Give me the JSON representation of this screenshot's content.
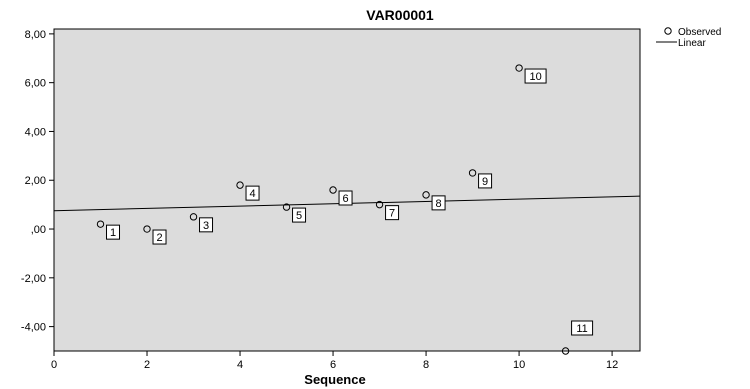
{
  "chart_data": {
    "type": "scatter",
    "title": "VAR00001",
    "xlabel": "Sequence",
    "ylabel": "",
    "xlim": [
      0,
      12.6
    ],
    "ylim": [
      -5,
      8.2
    ],
    "x_ticks": [
      0,
      2,
      4,
      6,
      8,
      10,
      12
    ],
    "x_tick_labels": [
      "0",
      "2",
      "4",
      "6",
      "8",
      "10",
      "12"
    ],
    "y_ticks": [
      8,
      6,
      4,
      2,
      0,
      -2,
      -4
    ],
    "y_tick_labels": [
      "8,00",
      "6,00",
      "4,00",
      "2,00",
      ",00",
      "-2,00",
      "-4,00"
    ],
    "grid": false,
    "legend_position": "top-right",
    "legend": [
      {
        "label": "Observed",
        "marker": "circle"
      },
      {
        "label": "Linear",
        "marker": "line"
      }
    ],
    "series": [
      {
        "name": "Observed",
        "x": [
          1,
          2,
          3,
          4,
          5,
          6,
          7,
          8,
          9,
          10,
          11
        ],
        "y": [
          0.2,
          0.0,
          0.5,
          1.8,
          0.9,
          1.6,
          1.0,
          1.4,
          2.3,
          6.6,
          -5.0
        ],
        "point_labels": [
          "1",
          "2",
          "3",
          "4",
          "5",
          "6",
          "7",
          "8",
          "9",
          "10",
          "11"
        ]
      },
      {
        "name": "Linear",
        "type": "line",
        "x": [
          0,
          12.6
        ],
        "y": [
          0.75,
          1.35
        ]
      }
    ],
    "colors": {
      "plot_background": "#dcdcdc",
      "marker_stroke": "#000000",
      "line": "#000000"
    }
  }
}
